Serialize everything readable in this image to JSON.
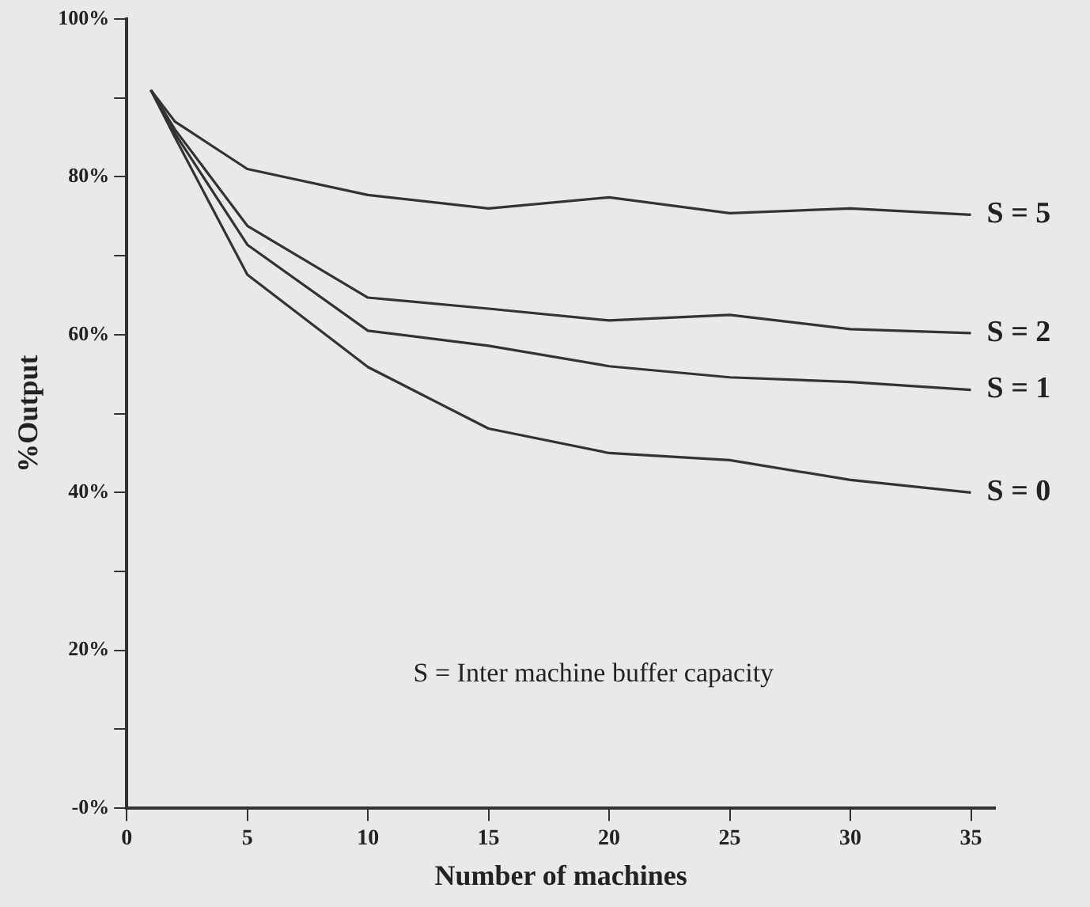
{
  "chart_data": {
    "type": "line",
    "xlabel": "Number of machines",
    "ylabel": "%Output",
    "x": [
      1,
      2,
      5,
      10,
      15,
      20,
      25,
      30,
      35
    ],
    "series": [
      {
        "name": "S = 5",
        "color": "#333333",
        "values": [
          91,
          87,
          81,
          77.7,
          76,
          77.4,
          75.4,
          76,
          75.2
        ]
      },
      {
        "name": "S = 2",
        "color": "#333333",
        "values": [
          91,
          86,
          73.8,
          64.7,
          63.3,
          61.8,
          62.5,
          60.7,
          60.2
        ]
      },
      {
        "name": "S = 1",
        "color": "#333333",
        "values": [
          91,
          85.5,
          71.4,
          60.5,
          58.6,
          56,
          54.6,
          54,
          53
        ]
      },
      {
        "name": "S = 0",
        "color": "#333333",
        "values": [
          91,
          85,
          67.6,
          55.9,
          48.1,
          45,
          44.1,
          41.6,
          40
        ]
      }
    ],
    "xlim": [
      0,
      36
    ],
    "xticks": [
      0,
      5,
      10,
      15,
      20,
      25,
      30,
      35
    ],
    "ylim": [
      0,
      100
    ],
    "yticks": [
      {
        "value": 0,
        "label": "-0%"
      },
      {
        "value": 10,
        "label": null
      },
      {
        "value": 20,
        "label": "20%"
      },
      {
        "value": 30,
        "label": null
      },
      {
        "value": 40,
        "label": "40%"
      },
      {
        "value": 50,
        "label": null
      },
      {
        "value": 60,
        "label": "60%"
      },
      {
        "value": 70,
        "label": null
      },
      {
        "value": 80,
        "label": "80%"
      },
      {
        "value": 90,
        "label": null
      },
      {
        "value": 100,
        "label": "100%"
      }
    ],
    "grid": false,
    "legend": false,
    "marker": "none",
    "line_style": "solid",
    "annotations": [
      "S = Inter machine buffer capacity"
    ]
  }
}
